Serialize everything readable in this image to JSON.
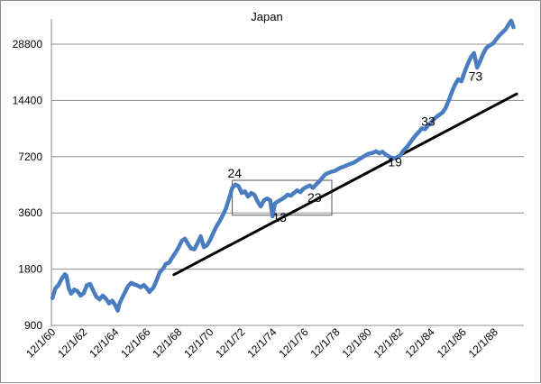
{
  "chart_data": {
    "type": "line",
    "title": "Japan",
    "xlabel": "",
    "ylabel": "",
    "yscale": "log2",
    "ylim": [
      900,
      57600
    ],
    "yticks": [
      900,
      1800,
      3600,
      7200,
      14400,
      28800
    ],
    "ytick_labels": [
      "900",
      "1800",
      "3600",
      "7200",
      "14400",
      "28800"
    ],
    "xlim": [
      1960.85,
      1990.3
    ],
    "xticks": [
      1960.92,
      1962.92,
      1964.92,
      1966.92,
      1968.92,
      1970.92,
      1972.92,
      1974.92,
      1976.92,
      1978.92,
      1980.92,
      1982.92,
      1984.92,
      1986.92,
      1988.92
    ],
    "xtick_labels": [
      "12/1/60",
      "12/1/62",
      "12/1/64",
      "12/1/66",
      "12/1/68",
      "12/1/70",
      "12/1/72",
      "12/1/74",
      "12/1/76",
      "12/1/78",
      "12/1/80",
      "12/1/82",
      "12/1/84",
      "12/1/86",
      "12/1/88"
    ],
    "grid": "horizontal",
    "legend": "none",
    "colors": {
      "series": "#4a7cc0",
      "trend": "#000000",
      "grid": "#8c8c8c",
      "box": "#555555"
    },
    "series": [
      {
        "points": [
          [
            1960.92,
            1260
          ],
          [
            1961.1,
            1420
          ],
          [
            1961.3,
            1480
          ],
          [
            1961.5,
            1600
          ],
          [
            1961.7,
            1690
          ],
          [
            1961.8,
            1660
          ],
          [
            1961.95,
            1420
          ],
          [
            1962.1,
            1330
          ],
          [
            1962.3,
            1400
          ],
          [
            1962.5,
            1370
          ],
          [
            1962.7,
            1300
          ],
          [
            1962.9,
            1340
          ],
          [
            1963.1,
            1480
          ],
          [
            1963.3,
            1500
          ],
          [
            1963.5,
            1380
          ],
          [
            1963.7,
            1280
          ],
          [
            1963.9,
            1240
          ],
          [
            1964.1,
            1300
          ],
          [
            1964.3,
            1250
          ],
          [
            1964.5,
            1180
          ],
          [
            1964.7,
            1220
          ],
          [
            1964.9,
            1150
          ],
          [
            1965.05,
            1080
          ],
          [
            1965.15,
            1170
          ],
          [
            1965.3,
            1250
          ],
          [
            1965.5,
            1350
          ],
          [
            1965.7,
            1460
          ],
          [
            1965.9,
            1520
          ],
          [
            1966.1,
            1490
          ],
          [
            1966.3,
            1470
          ],
          [
            1966.5,
            1440
          ],
          [
            1966.7,
            1480
          ],
          [
            1966.9,
            1420
          ],
          [
            1967.05,
            1360
          ],
          [
            1967.3,
            1430
          ],
          [
            1967.5,
            1560
          ],
          [
            1967.7,
            1730
          ],
          [
            1967.9,
            1800
          ],
          [
            1968.1,
            1920
          ],
          [
            1968.3,
            1950
          ],
          [
            1968.5,
            2080
          ],
          [
            1968.7,
            2200
          ],
          [
            1968.9,
            2350
          ],
          [
            1969.1,
            2550
          ],
          [
            1969.3,
            2620
          ],
          [
            1969.5,
            2450
          ],
          [
            1969.7,
            2320
          ],
          [
            1969.9,
            2300
          ],
          [
            1970.1,
            2480
          ],
          [
            1970.3,
            2700
          ],
          [
            1970.5,
            2360
          ],
          [
            1970.7,
            2420
          ],
          [
            1970.9,
            2580
          ],
          [
            1971.1,
            2820
          ],
          [
            1971.3,
            3050
          ],
          [
            1971.5,
            3250
          ],
          [
            1971.7,
            3500
          ],
          [
            1971.9,
            3800
          ],
          [
            1972.1,
            4300
          ],
          [
            1972.3,
            4900
          ],
          [
            1972.5,
            5100
          ],
          [
            1972.7,
            5000
          ],
          [
            1972.9,
            4600
          ],
          [
            1973.1,
            4700
          ],
          [
            1973.3,
            4400
          ],
          [
            1973.5,
            4600
          ],
          [
            1973.7,
            4500
          ],
          [
            1973.9,
            4150
          ],
          [
            1974.1,
            3900
          ],
          [
            1974.3,
            4200
          ],
          [
            1974.5,
            4300
          ],
          [
            1974.7,
            4200
          ],
          [
            1974.85,
            3450
          ],
          [
            1975.0,
            4050
          ],
          [
            1975.2,
            4150
          ],
          [
            1975.4,
            4250
          ],
          [
            1975.6,
            4350
          ],
          [
            1975.8,
            4500
          ],
          [
            1976.0,
            4450
          ],
          [
            1976.2,
            4600
          ],
          [
            1976.4,
            4750
          ],
          [
            1976.6,
            4650
          ],
          [
            1976.8,
            4850
          ],
          [
            1977.0,
            4950
          ],
          [
            1977.2,
            5050
          ],
          [
            1977.4,
            4900
          ],
          [
            1977.6,
            5100
          ],
          [
            1977.8,
            5300
          ],
          [
            1978.0,
            5550
          ],
          [
            1978.2,
            5800
          ],
          [
            1978.5,
            5950
          ],
          [
            1978.8,
            6050
          ],
          [
            1979.1,
            6250
          ],
          [
            1979.4,
            6400
          ],
          [
            1979.7,
            6550
          ],
          [
            1980.0,
            6700
          ],
          [
            1980.3,
            6950
          ],
          [
            1980.6,
            7200
          ],
          [
            1980.9,
            7450
          ],
          [
            1981.2,
            7550
          ],
          [
            1981.4,
            7700
          ],
          [
            1981.6,
            7500
          ],
          [
            1981.8,
            7650
          ],
          [
            1982.0,
            7400
          ],
          [
            1982.3,
            7150
          ],
          [
            1982.6,
            7050
          ],
          [
            1982.9,
            7250
          ],
          [
            1983.1,
            7700
          ],
          [
            1983.4,
            8200
          ],
          [
            1983.7,
            8900
          ],
          [
            1983.9,
            9350
          ],
          [
            1984.1,
            9750
          ],
          [
            1984.3,
            10200
          ],
          [
            1984.5,
            10100
          ],
          [
            1984.7,
            10600
          ],
          [
            1984.9,
            11000
          ],
          [
            1985.1,
            11500
          ],
          [
            1985.3,
            11900
          ],
          [
            1985.6,
            12400
          ],
          [
            1985.8,
            13100
          ],
          [
            1986.0,
            14400
          ],
          [
            1986.2,
            16000
          ],
          [
            1986.4,
            17500
          ],
          [
            1986.6,
            18700
          ],
          [
            1986.8,
            18200
          ],
          [
            1987.0,
            20400
          ],
          [
            1987.2,
            22500
          ],
          [
            1987.4,
            24500
          ],
          [
            1987.6,
            25800
          ],
          [
            1987.8,
            21600
          ],
          [
            1988.0,
            23500
          ],
          [
            1988.2,
            25800
          ],
          [
            1988.4,
            27600
          ],
          [
            1988.6,
            28400
          ],
          [
            1988.8,
            29000
          ],
          [
            1989.0,
            30500
          ],
          [
            1989.2,
            32000
          ],
          [
            1989.4,
            33300
          ],
          [
            1989.6,
            34500
          ],
          [
            1989.8,
            36800
          ],
          [
            1989.95,
            38500
          ],
          [
            1990.1,
            35500
          ]
        ]
      }
    ],
    "trendline": {
      "start": [
        1968.6,
        1680
      ],
      "end": [
        1990.3,
        15600
      ]
    },
    "highlight_box": {
      "x": [
        1972.3,
        1978.6
      ],
      "y": [
        3500,
        5380
      ]
    },
    "annotations": [
      {
        "text": "24",
        "x": 1972.45,
        "y": 5550
      },
      {
        "text": "13",
        "x": 1975.3,
        "y": 3230
      },
      {
        "text": "23",
        "x": 1977.5,
        "y": 4130
      },
      {
        "text": "19",
        "x": 1982.6,
        "y": 6400
      },
      {
        "text": "33",
        "x": 1984.7,
        "y": 10550
      },
      {
        "text": "73",
        "x": 1987.7,
        "y": 18400
      }
    ]
  }
}
